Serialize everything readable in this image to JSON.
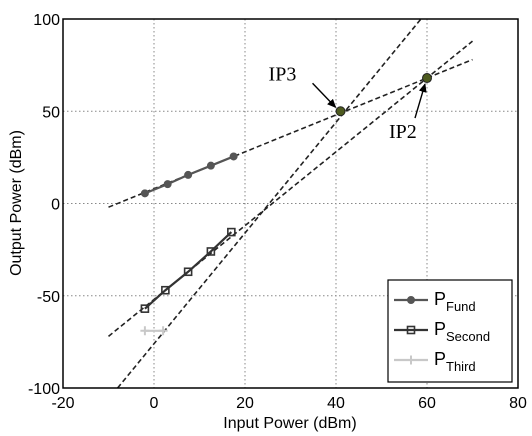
{
  "chart_data": {
    "type": "line",
    "xlabel": "Input Power (dBm)",
    "ylabel": "Output Power (dBm)",
    "xlim": [
      -20,
      80
    ],
    "ylim": [
      -100,
      100
    ],
    "xticks": [
      -20,
      0,
      20,
      40,
      60,
      80
    ],
    "yticks": [
      -100,
      -50,
      0,
      50,
      100
    ],
    "grid": true,
    "legend_position": "bottom-right",
    "series": [
      {
        "name": "P",
        "subscript": "Fund",
        "color": "#555555",
        "marker": "circle",
        "x": [
          -2,
          3,
          7.5,
          12.5,
          17.5
        ],
        "y": [
          5.5,
          10.5,
          15.5,
          20.5,
          25.5
        ]
      },
      {
        "name": "P",
        "subscript": "Second",
        "color": "#333333",
        "marker": "square",
        "x": [
          -2,
          2.5,
          7.5,
          12.5,
          17
        ],
        "y": [
          -57,
          -47,
          -37,
          -26,
          -15.5
        ]
      },
      {
        "name": "P",
        "subscript": "Third",
        "color": "#c8c8c8",
        "marker": "plus",
        "x": [
          -2,
          2
        ],
        "y": [
          -69,
          -69
        ]
      }
    ],
    "extrapolations": [
      {
        "x": [
          -10,
          70
        ],
        "y": [
          -2,
          78
        ]
      },
      {
        "x": [
          -10,
          70
        ],
        "y": [
          -72,
          88
        ]
      },
      {
        "x": [
          -8,
          59
        ],
        "y": [
          -100,
          101
        ]
      }
    ],
    "intercepts": [
      {
        "label": "IP3",
        "x": 41,
        "y": 50
      },
      {
        "label": "IP2",
        "x": 60,
        "y": 68
      }
    ]
  }
}
